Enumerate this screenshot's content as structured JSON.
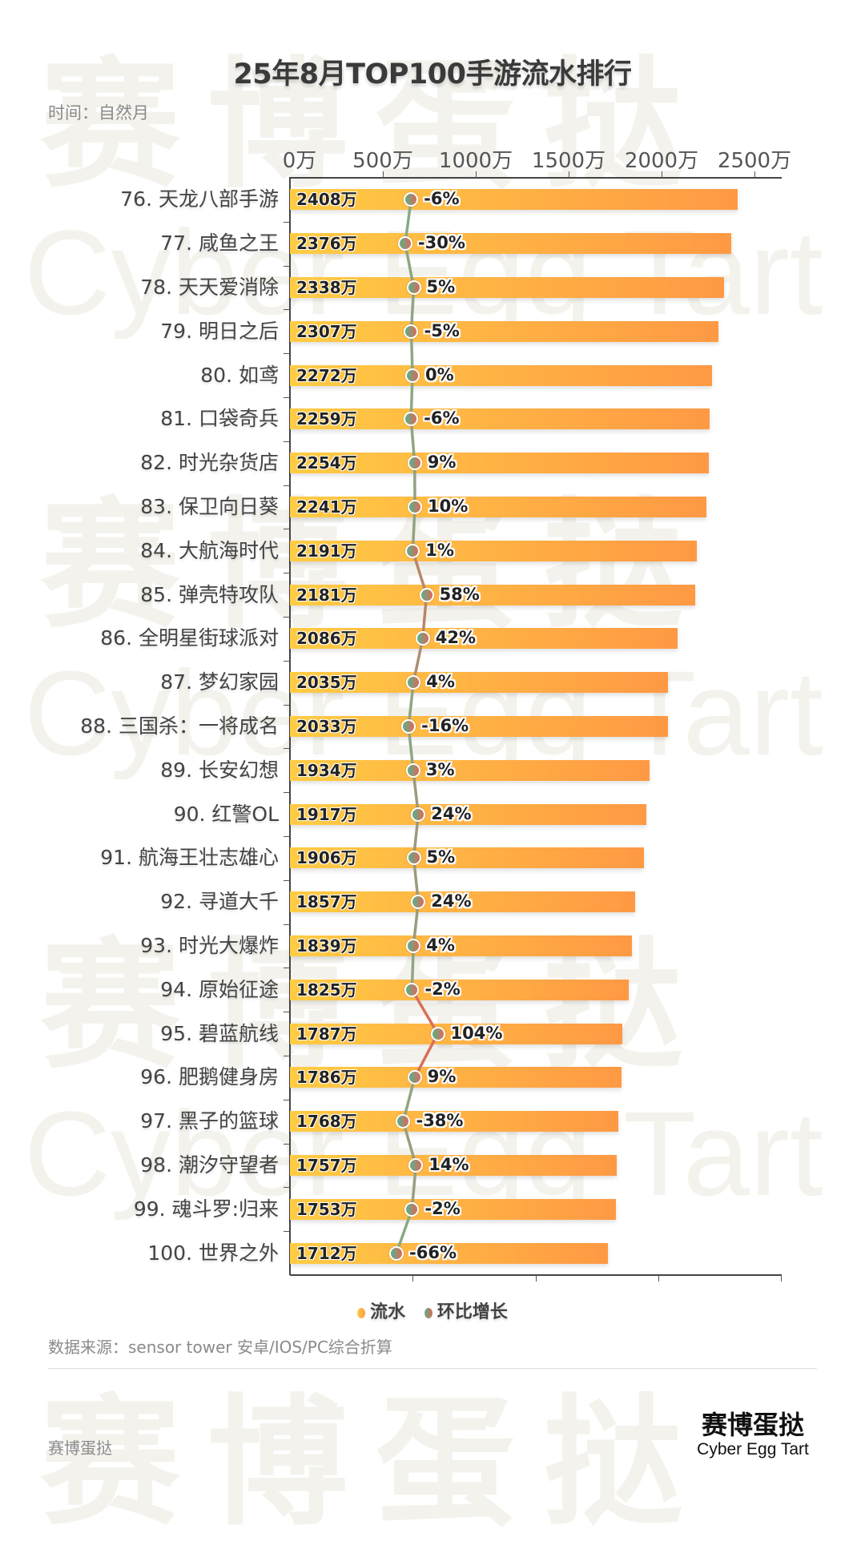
{
  "header": {
    "title": "25年8月TOP100手游流水排行",
    "subtitle": "时间：自然月"
  },
  "watermark": {
    "cn": "赛博蛋挞",
    "en": "Cyber Egg Tart"
  },
  "legend": {
    "items": [
      {
        "label": "流水",
        "icon": "orange-dot-icon",
        "color": "#FFB444"
      },
      {
        "label": "环比增长",
        "icon": "green-red-dot-icon",
        "color": "#5CB08A"
      }
    ]
  },
  "footer": {
    "source": "数据来源：sensor tower 安卓/IOS/PC综合折算",
    "left_brand": "赛博蛋挞",
    "brand_cn": "赛博蛋挞",
    "brand_en": "Cyber Egg Tart"
  },
  "colors": {
    "bar_start": "#FFCC44",
    "bar_end": "#FF9944",
    "dot_left": "#5CB08A",
    "dot_right": "#D96A5A",
    "line_negative": "#6DBE96",
    "line_positive": "#D8705A"
  },
  "chart_data": {
    "type": "bar",
    "title": "25年8月TOP100手游流水排行",
    "subtitle": "时间：自然月",
    "orientation": "horizontal",
    "xlabel": "",
    "ylabel": "",
    "x_ticks": [
      "0万",
      "500万",
      "1000万",
      "1500万",
      "2000万",
      "2500万"
    ],
    "xlim": [
      0,
      2500
    ],
    "unit": "万",
    "legend_position": "bottom",
    "grid": false,
    "categories": [
      "76. 天龙八部手游",
      "77. 咸鱼之王",
      "78. 天天爱消除",
      "79. 明日之后",
      "80. 如鸢",
      "81. 口袋奇兵",
      "82. 时光杂货店",
      "83. 保卫向日葵",
      "84. 大航海时代",
      "85. 弹壳特攻队",
      "86. 全明星街球派对",
      "87. 梦幻家园",
      "88. 三国杀：一将成名",
      "89. 长安幻想",
      "90. 红警OL",
      "91. 航海王壮志雄心",
      "92. 寻道大千",
      "93. 时光大爆炸",
      "94. 原始征途",
      "95. 碧蓝航线",
      "96. 肥鹅健身房",
      "97. 黑子的篮球",
      "98. 潮汐守望者",
      "99. 魂斗罗:归来",
      "100. 世界之外"
    ],
    "series": [
      {
        "name": "流水",
        "type": "bar",
        "values": [
          2408,
          2376,
          2338,
          2307,
          2272,
          2259,
          2254,
          2241,
          2191,
          2181,
          2086,
          2035,
          2033,
          1934,
          1917,
          1906,
          1857,
          1839,
          1825,
          1787,
          1786,
          1768,
          1757,
          1753,
          1712
        ],
        "labels": [
          "2408万",
          "2376万",
          "2338万",
          "2307万",
          "2272万",
          "2259万",
          "2254万",
          "2241万",
          "2191万",
          "2181万",
          "2086万",
          "2035万",
          "2033万",
          "1934万",
          "1917万",
          "1906万",
          "1857万",
          "1839万",
          "1825万",
          "1787万",
          "1786万",
          "1768万",
          "1757万",
          "1753万",
          "1712万"
        ]
      },
      {
        "name": "环比增长",
        "type": "line",
        "values": [
          -6,
          -30,
          5,
          -5,
          0,
          -6,
          9,
          10,
          1,
          58,
          42,
          4,
          -16,
          3,
          24,
          5,
          24,
          4,
          -2,
          104,
          9,
          -38,
          14,
          -2,
          -66
        ],
        "labels": [
          "-6%",
          "-30%",
          "5%",
          "-5%",
          "0%",
          "-6%",
          "9%",
          "10%",
          "1%",
          "58%",
          "42%",
          "4%",
          "-16%",
          "3%",
          "24%",
          "5%",
          "24%",
          "4%",
          "-2%",
          "104%",
          "9%",
          "-38%",
          "14%",
          "-2%",
          "-66%"
        ]
      }
    ]
  }
}
